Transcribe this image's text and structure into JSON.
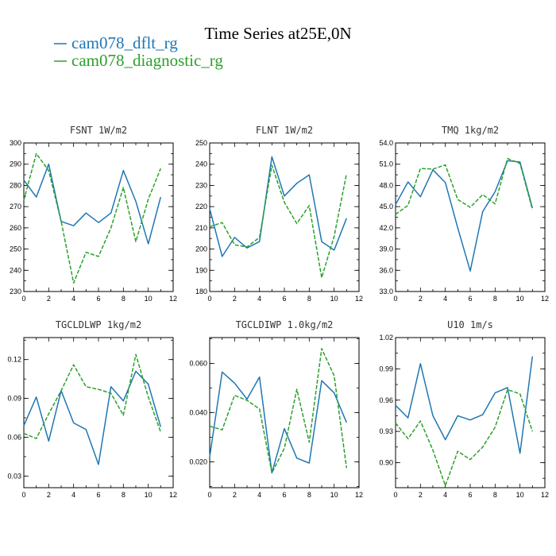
{
  "figure": {
    "title": "Time Series at25E,0N",
    "colors": {
      "dflt": "#1f77b4",
      "diag": "#2ca02c"
    },
    "legend": [
      {
        "label": "cam078_dflt_rg",
        "color": "#1f77b4"
      },
      {
        "label": "cam078_diagnostic_rg",
        "color": "#2ca02c"
      }
    ]
  },
  "chart_data": [
    {
      "type": "line",
      "title": "FSNT  1W/m2",
      "xlim": [
        0,
        12
      ],
      "xticks": [
        "0",
        "2",
        "4",
        "6",
        "8",
        "10",
        "12"
      ],
      "ylim": [
        230,
        300
      ],
      "yticks": [
        "230",
        "240",
        "250",
        "260",
        "270",
        "280",
        "290",
        "300"
      ],
      "x": [
        0,
        1,
        2,
        3,
        4,
        5,
        6,
        7,
        8,
        9,
        10,
        11
      ],
      "series": [
        {
          "name": "cam078_dflt_rg",
          "values": [
            282.5,
            274.5,
            290,
            263,
            261,
            267,
            262.5,
            267,
            287,
            272.5,
            252.5,
            274.5
          ]
        },
        {
          "name": "cam078_diagnostic_rg",
          "values": [
            273,
            295,
            287,
            263,
            234,
            248.5,
            246.5,
            260,
            279,
            253.5,
            273.5,
            288
          ]
        }
      ]
    },
    {
      "type": "line",
      "title": "FLNT  1W/m2",
      "xlim": [
        0,
        12
      ],
      "xticks": [
        "0",
        "2",
        "4",
        "6",
        "8",
        "10",
        "12"
      ],
      "ylim": [
        180,
        250
      ],
      "yticks": [
        "180",
        "190",
        "200",
        "210",
        "220",
        "230",
        "240",
        "250"
      ],
      "x": [
        0,
        1,
        2,
        3,
        4,
        5,
        6,
        7,
        8,
        9,
        10,
        11
      ],
      "series": [
        {
          "name": "cam078_dflt_rg",
          "values": [
            219,
            196.5,
            205.5,
            200.5,
            203.5,
            243.5,
            225,
            231,
            235,
            203.5,
            199.5,
            214.5
          ]
        },
        {
          "name": "cam078_diagnostic_rg",
          "values": [
            210.5,
            212.5,
            202,
            201,
            205.5,
            239.5,
            222,
            212,
            220.5,
            186.5,
            206,
            235.5
          ]
        }
      ]
    },
    {
      "type": "line",
      "title": "TMQ  1kg/m2",
      "xlim": [
        0,
        12
      ],
      "xticks": [
        "0",
        "2",
        "4",
        "6",
        "8",
        "10",
        "12"
      ],
      "ylim": [
        33,
        54
      ],
      "yticks": [
        "33.0",
        "36.0",
        "39.0",
        "42.0",
        "45.0",
        "48.0",
        "51.0",
        "54.0"
      ],
      "x": [
        0,
        1,
        2,
        3,
        4,
        5,
        6,
        7,
        8,
        9,
        10,
        11
      ],
      "series": [
        {
          "name": "cam078_dflt_rg",
          "values": [
            45.3,
            48.5,
            46.4,
            50.2,
            48.4,
            42,
            35.9,
            44.3,
            47.1,
            51.5,
            51.3,
            44.8
          ]
        },
        {
          "name": "cam078_diagnostic_rg",
          "values": [
            43.9,
            45.2,
            50.4,
            50.3,
            50.9,
            46,
            44.9,
            46.7,
            45.4,
            51.8,
            51.1,
            44.6
          ]
        }
      ]
    },
    {
      "type": "line",
      "title": "TGCLDLWP  1kg/m2",
      "xlim": [
        0,
        12
      ],
      "xticks": [
        "0",
        "2",
        "4",
        "6",
        "8",
        "10",
        "12"
      ],
      "ylim": [
        0.021,
        0.137
      ],
      "yticks": [
        "0.03",
        "0.06",
        "0.09",
        "0.12"
      ],
      "x": [
        0,
        1,
        2,
        3,
        4,
        5,
        6,
        7,
        8,
        9,
        10,
        11
      ],
      "series": [
        {
          "name": "cam078_dflt_rg",
          "values": [
            0.069,
            0.091,
            0.057,
            0.096,
            0.071,
            0.066,
            0.039,
            0.099,
            0.088,
            0.111,
            0.101,
            0.068
          ]
        },
        {
          "name": "cam078_diagnostic_rg",
          "values": [
            0.063,
            0.059,
            0.078,
            0.096,
            0.116,
            0.099,
            0.097,
            0.094,
            0.077,
            0.124,
            0.091,
            0.064
          ]
        }
      ]
    },
    {
      "type": "line",
      "title": "TGCLDIWP  1.0kg/m2",
      "xlim": [
        0,
        12
      ],
      "xticks": [
        "0",
        "2",
        "4",
        "6",
        "8",
        "10",
        "12"
      ],
      "ylim": [
        0.0095,
        0.0705
      ],
      "yticks": [
        "0.020",
        "0.040",
        "0.060"
      ],
      "x": [
        0,
        1,
        2,
        3,
        4,
        5,
        6,
        7,
        8,
        9,
        10,
        11
      ],
      "series": [
        {
          "name": "cam078_dflt_rg",
          "values": [
            0.022,
            0.0565,
            0.052,
            0.0455,
            0.0545,
            0.0155,
            0.0335,
            0.0215,
            0.0195,
            0.053,
            0.048,
            0.036
          ]
        },
        {
          "name": "cam078_diagnostic_rg",
          "values": [
            0.0345,
            0.033,
            0.047,
            0.045,
            0.0415,
            0.0155,
            0.0255,
            0.0495,
            0.028,
            0.066,
            0.055,
            0.0175
          ]
        }
      ]
    },
    {
      "type": "line",
      "title": "U10  1m/s",
      "xlim": [
        0,
        12
      ],
      "xticks": [
        "0",
        "2",
        "4",
        "6",
        "8",
        "10",
        "12"
      ],
      "ylim": [
        0.876,
        1.02
      ],
      "yticks": [
        "0.90",
        "0.93",
        "0.96",
        "0.99",
        "1.02"
      ],
      "x": [
        0,
        1,
        2,
        3,
        4,
        5,
        6,
        7,
        8,
        9,
        10,
        11
      ],
      "series": [
        {
          "name": "cam078_dflt_rg",
          "values": [
            0.955,
            0.943,
            0.995,
            0.945,
            0.922,
            0.945,
            0.941,
            0.946,
            0.967,
            0.972,
            0.909,
            1.002
          ]
        },
        {
          "name": "cam078_diagnostic_rg",
          "values": [
            0.938,
            0.923,
            0.94,
            0.912,
            0.878,
            0.911,
            0.903,
            0.915,
            0.934,
            0.97,
            0.966,
            0.93
          ]
        }
      ]
    }
  ]
}
